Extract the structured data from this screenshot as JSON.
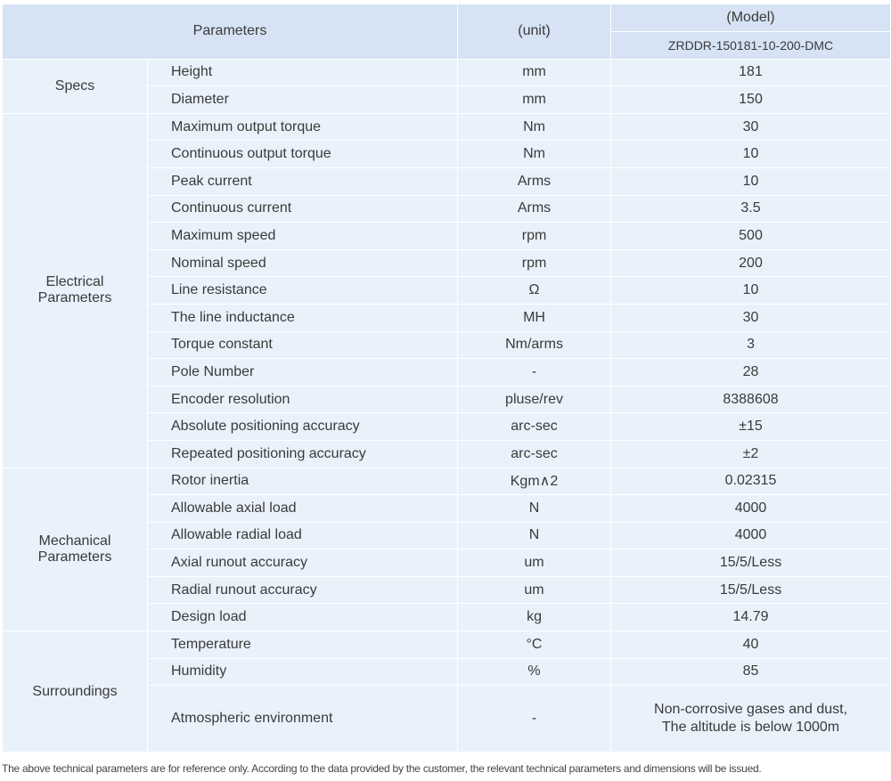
{
  "header": {
    "parameters": "Parameters",
    "unit": "(unit)",
    "model": "(Model)",
    "model_name": "ZRDDR-150181-10-200-DMC"
  },
  "groups": [
    {
      "name": "Specs",
      "rows": [
        [
          "Height",
          "mm",
          "181"
        ],
        [
          "Diameter",
          "mm",
          "150"
        ]
      ]
    },
    {
      "name": "Electrical Parameters",
      "rows": [
        [
          "Maximum output torque",
          "Nm",
          "30"
        ],
        [
          "Continuous output torque",
          "Nm",
          "10"
        ],
        [
          "Peak current",
          "Arms",
          "10"
        ],
        [
          "Continuous current",
          "Arms",
          "3.5"
        ],
        [
          "Maximum speed",
          "rpm",
          "500"
        ],
        [
          "Nominal speed",
          "rpm",
          "200"
        ],
        [
          "Line resistance",
          "Ω",
          "10"
        ],
        [
          "The line inductance",
          "MH",
          "30"
        ],
        [
          "Torque constant",
          "Nm/arms",
          "3"
        ],
        [
          "Pole Number",
          "-",
          "28"
        ],
        [
          "Encoder resolution",
          "pluse/rev",
          "8388608"
        ],
        [
          "Absolute positioning accuracy",
          "arc-sec",
          "±15"
        ],
        [
          "Repeated positioning accuracy",
          "arc-sec",
          "±2"
        ]
      ]
    },
    {
      "name": "Mechanical Parameters",
      "rows": [
        [
          "Rotor inertia",
          "Kgm∧2",
          "0.02315"
        ],
        [
          "Allowable axial load",
          "N",
          "4000"
        ],
        [
          "Allowable radial load",
          "N",
          "4000"
        ],
        [
          "Axial runout accuracy",
          "um",
          "15/5/Less"
        ],
        [
          "Radial runout accuracy",
          "um",
          "15/5/Less"
        ],
        [
          "Design load",
          "kg",
          "14.79"
        ]
      ]
    },
    {
      "name": "Surroundings",
      "rows": [
        [
          "Temperature",
          "°C",
          "40"
        ],
        [
          "Humidity",
          "%",
          "85"
        ],
        [
          "Atmospheric environment",
          "-",
          "Non-corrosive gases and dust,\nThe altitude is below 1000m"
        ]
      ]
    }
  ],
  "footnote": "The above technical parameters are for reference only. According to the data provided by the customer, the relevant technical parameters and dimensions will be issued."
}
